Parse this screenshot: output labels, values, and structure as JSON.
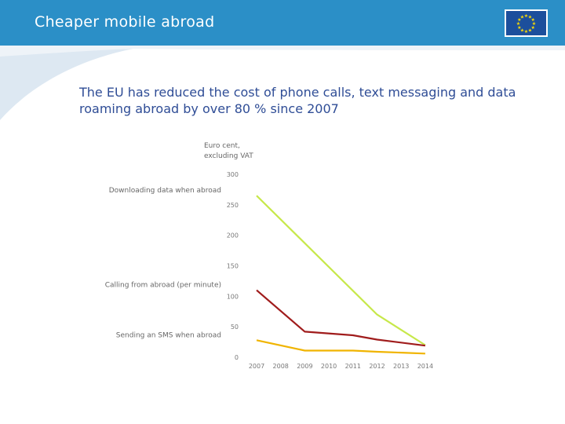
{
  "header": {
    "title": "Cheaper mobile abroad",
    "bg_color": "#2b8fc7"
  },
  "eu_flag": {
    "icon": "eu-flag-icon",
    "star_color": "#ffdd00",
    "bg_color": "#1c4f9c"
  },
  "subtitle": "The EU has reduced the cost of phone calls, text messaging and data roaming abroad by over 80 % since 2007",
  "chart_data": {
    "type": "line",
    "unit_label_line1": "Euro cent,",
    "unit_label_line2": "excluding VAT",
    "categories": [
      "2007",
      "2008",
      "2009",
      "2010",
      "2011",
      "2012",
      "2013",
      "2014"
    ],
    "yticks": [
      "300",
      "250",
      "200",
      "150",
      "100",
      "50",
      "0"
    ],
    "ylim": [
      0,
      300
    ],
    "grid": false,
    "series": [
      {
        "name": "Downloading data when abroad",
        "color": "#c7e84a",
        "points": [
          [
            2007,
            265
          ],
          [
            2012,
            70
          ],
          [
            2014,
            20
          ]
        ]
      },
      {
        "name": "Calling from abroad (per minute)",
        "color": "#a01c1c",
        "points": [
          [
            2007,
            110
          ],
          [
            2009,
            42
          ],
          [
            2011,
            36
          ],
          [
            2012,
            29
          ],
          [
            2014,
            19
          ]
        ]
      },
      {
        "name": "Sending an SMS when abroad",
        "color": "#f0b400",
        "points": [
          [
            2007,
            28
          ],
          [
            2009,
            11
          ],
          [
            2011,
            11
          ],
          [
            2012,
            9
          ],
          [
            2014,
            6
          ]
        ]
      }
    ]
  }
}
